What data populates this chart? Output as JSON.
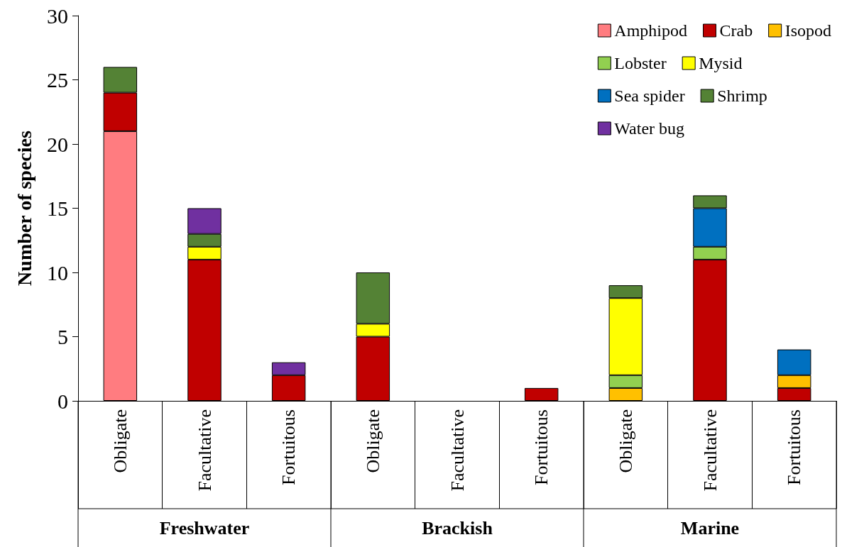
{
  "chart_data": {
    "type": "bar",
    "stacked": true,
    "ylabel": "Number of species",
    "categories": [
      "Obligate",
      "Facultative",
      "Fortuitous",
      "Obligate",
      "Facultative",
      "Fortuitous",
      "Obligate",
      "Facultative",
      "Fortuitous"
    ],
    "annotations": [
      "Freshwater",
      "Brackish",
      "Marine"
    ],
    "series": [
      {
        "name": "Amphipod",
        "color": "#ff7c80",
        "values": [
          21,
          0,
          0,
          0,
          0,
          0,
          0,
          0,
          0
        ]
      },
      {
        "name": "Crab",
        "color": "#c00000",
        "values": [
          3,
          11,
          2,
          5,
          0,
          1,
          0,
          11,
          1
        ]
      },
      {
        "name": "Isopod",
        "color": "#ffc000",
        "values": [
          0,
          0,
          0,
          0,
          0,
          0,
          1,
          0,
          1
        ]
      },
      {
        "name": "Lobster",
        "color": "#92d050",
        "values": [
          0,
          0,
          0,
          0,
          0,
          0,
          1,
          1,
          0
        ]
      },
      {
        "name": "Mysid",
        "color": "#ffff00",
        "values": [
          0,
          1,
          0,
          1,
          0,
          0,
          6,
          0,
          0
        ]
      },
      {
        "name": "Sea spider",
        "color": "#0070c0",
        "values": [
          0,
          0,
          0,
          0,
          0,
          0,
          0,
          3,
          2
        ]
      },
      {
        "name": "Shrimp",
        "color": "#548235",
        "values": [
          2,
          1,
          0,
          4,
          0,
          0,
          1,
          1,
          0
        ]
      },
      {
        "name": "Water bug",
        "color": "#7030a0",
        "values": [
          0,
          2,
          1,
          0,
          0,
          0,
          0,
          0,
          0
        ]
      }
    ],
    "ylim": [
      0,
      30
    ],
    "yticks": [
      0,
      5,
      10,
      15,
      20,
      25,
      30
    ],
    "grid": false,
    "legend": "top right"
  }
}
